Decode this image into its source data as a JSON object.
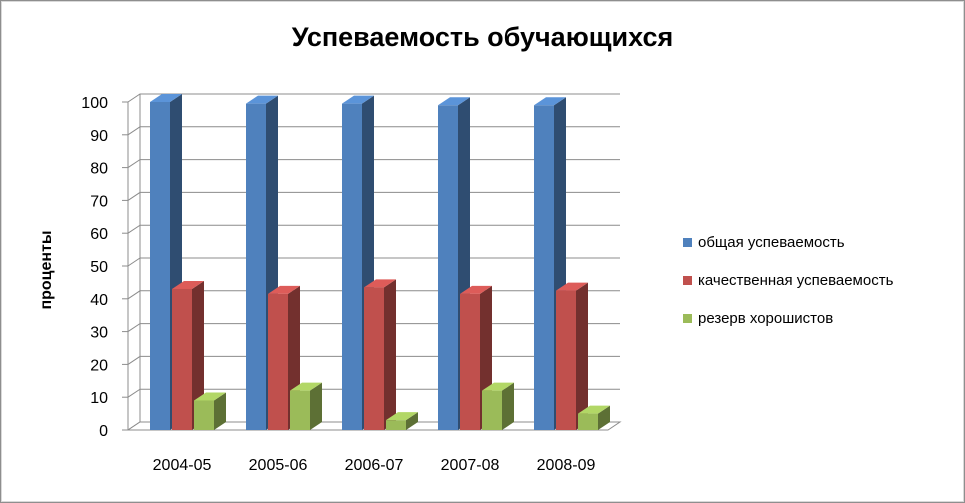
{
  "chart_data": {
    "type": "bar",
    "title": "Успеваемость обучающихся",
    "ylabel": "проценты",
    "xlabel": "",
    "categories": [
      "2004-05",
      "2005-06",
      "2006-07",
      "2007-08",
      "2008-09"
    ],
    "series": [
      {
        "name": "общая успеваемость",
        "color": "#4f81bd",
        "values": [
          100,
          99.5,
          99.5,
          99,
          99
        ]
      },
      {
        "name": "качественная успеваемость",
        "color": "#c0504d",
        "values": [
          43,
          41.5,
          43.5,
          41.5,
          42.5
        ]
      },
      {
        "name": "резерв хорошистов",
        "color": "#9bbb59",
        "values": [
          9,
          12,
          3,
          12,
          5
        ]
      }
    ],
    "ylim": [
      0,
      100
    ],
    "yticks": [
      0,
      10,
      20,
      30,
      40,
      50,
      60,
      70,
      80,
      90,
      100
    ],
    "grid": true,
    "legend_position": "right",
    "style": "3d-clustered-column"
  }
}
